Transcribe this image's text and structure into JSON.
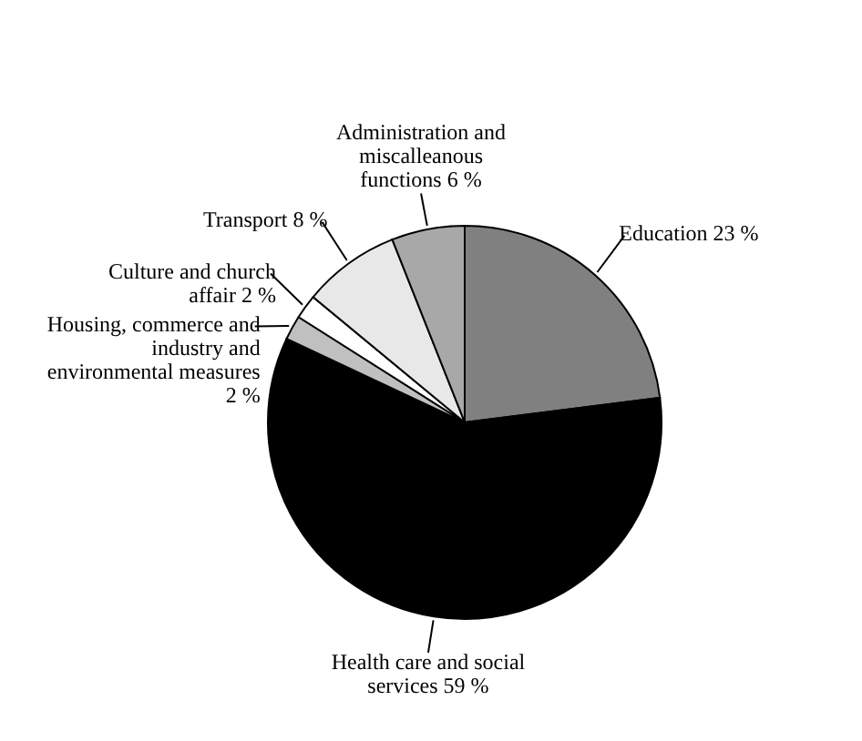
{
  "chart_data": {
    "type": "pie",
    "categories": [
      "Education",
      "Health care and social services",
      "Housing, commerce and industry and environmental measures",
      "Culture and church affair",
      "Transport",
      "Administration and miscalleanous functions"
    ],
    "values": [
      23,
      59,
      2,
      2,
      8,
      6
    ],
    "value_labels": [
      "23 %",
      "59 %",
      "2 %",
      "2 %",
      "8 %",
      "6 %"
    ],
    "colors": [
      "#808080",
      "#000000",
      "#c0c0c0",
      "#ffffff",
      "#e8e8e8",
      "#a8a8a8"
    ]
  }
}
